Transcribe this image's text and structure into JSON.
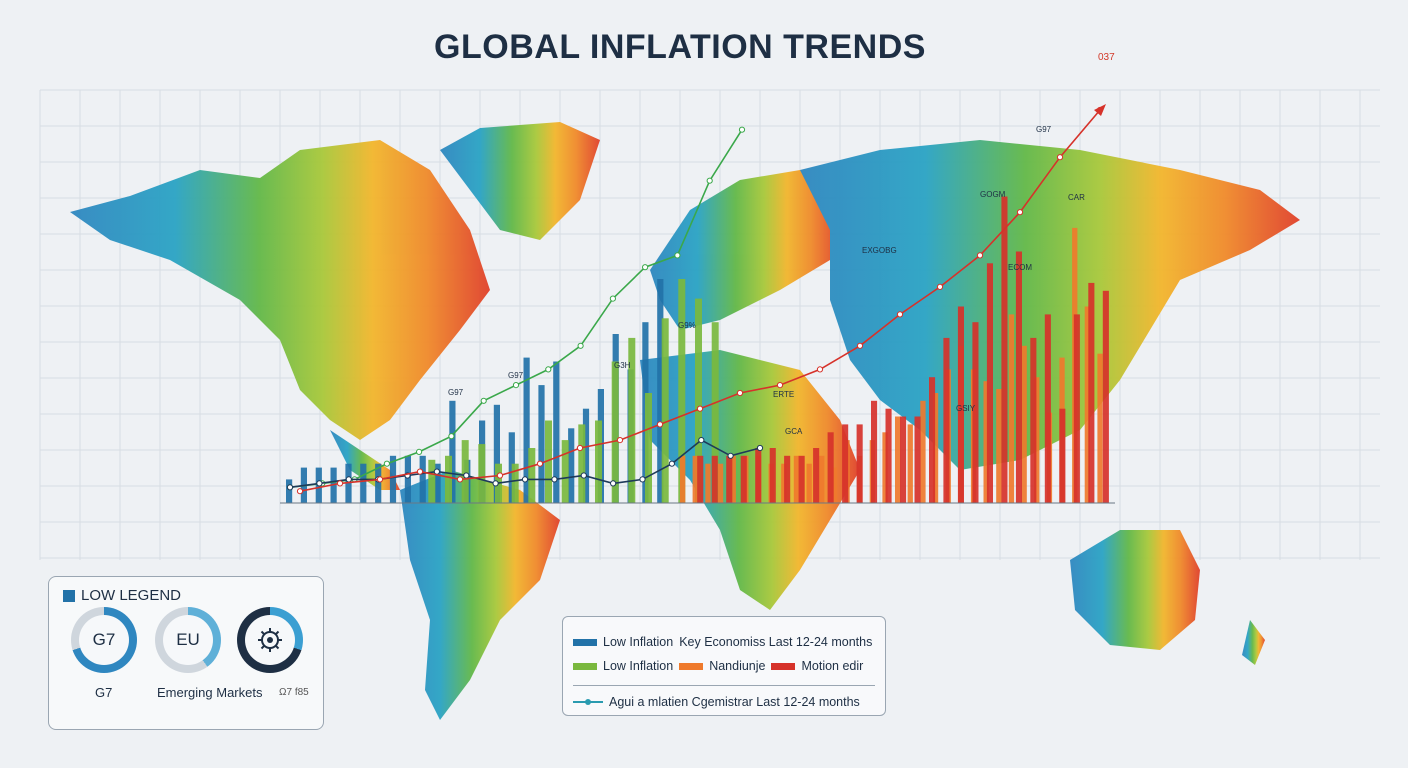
{
  "header": {
    "title": "GLOBAL INFLATION TRENDS",
    "corner_code": "037"
  },
  "colors": {
    "blue": "#2272a8",
    "green": "#7ab83e",
    "orange": "#ef7a2c",
    "red": "#d6322a",
    "navy": "#1e2f44"
  },
  "chart_data": {
    "type": "bar",
    "title": "GLOBAL INFLATION TRENDS",
    "ylim": [
      0,
      100
    ],
    "grid": true,
    "legend": "bottom",
    "series": [
      {
        "name": "Low Inflation",
        "color": "#2272a8",
        "values": [
          6,
          9,
          9,
          9,
          10,
          10,
          10,
          12,
          12,
          12,
          10,
          26,
          11,
          21,
          25,
          18,
          37,
          30,
          36,
          19,
          24,
          29,
          43,
          34,
          46,
          57
        ]
      },
      {
        "name": "Low Inflation",
        "color": "#7ab83e",
        "values": [
          11,
          12,
          16,
          15,
          10,
          10,
          14,
          21,
          16,
          20,
          21,
          36,
          42,
          28,
          47,
          57,
          52,
          46
        ]
      },
      {
        "name": "Nandiunje",
        "color": "#ef7a2c",
        "values": [
          12,
          12,
          10,
          10,
          12,
          12,
          12,
          10,
          10,
          12,
          10,
          12,
          9,
          16,
          12,
          16,
          18,
          22,
          20,
          26,
          28,
          34,
          40,
          34,
          31,
          29,
          48,
          40,
          32,
          23,
          37,
          70,
          50,
          38
        ]
      },
      {
        "name": "Motion edir",
        "color": "#d6322a",
        "values": [
          12,
          12,
          12,
          12,
          14,
          14,
          12,
          12,
          14,
          18,
          20,
          20,
          26,
          24,
          22,
          22,
          32,
          42,
          50,
          46,
          61,
          78,
          64,
          42,
          48,
          24,
          48,
          56,
          54
        ]
      }
    ],
    "lines": [
      {
        "name": "Key Economiss Last 12-24 months",
        "color": "#3aa84a",
        "values": [
          4,
          5,
          6,
          10,
          13,
          17,
          26,
          30,
          34,
          40,
          52,
          60,
          63,
          82,
          95
        ]
      },
      {
        "name": "Agui a mlatien Cgemistrar Last 12-24 months",
        "color": "#1e3a5a",
        "values": [
          4,
          5,
          6,
          6,
          7,
          8,
          7,
          5,
          6,
          6,
          7,
          5,
          6,
          10,
          16,
          12,
          14
        ]
      },
      {
        "name": "Motion edir",
        "color": "#d6322a",
        "values": [
          3,
          5,
          6,
          8,
          6,
          7,
          10,
          14,
          16,
          20,
          24,
          28,
          30,
          34,
          40,
          48,
          55,
          63,
          74,
          88,
          100
        ]
      }
    ],
    "annotations": [
      "G97",
      "G97",
      "G3H",
      "G9%",
      "EXGOBG",
      "GOGM",
      "G97",
      "CAR",
      "ECOM",
      "ERTE",
      "GCA",
      "GSIY"
    ]
  },
  "legend_left": {
    "heading": "LOW LEGEND",
    "donuts": [
      "G7",
      "EU",
      ""
    ],
    "labels": [
      "G7",
      "Emerging Markets",
      "Ω7 f85"
    ]
  },
  "legend_right": {
    "row1_a": "Low Inflation",
    "row1_b": "Key Economiss Last 12-24 months",
    "row2_a": "Low Inflation",
    "row2_b": "Nandiunje",
    "row2_c": "Motion edir",
    "row3": "Agui a mlatien Cgemistrar Last 12-24 months"
  }
}
